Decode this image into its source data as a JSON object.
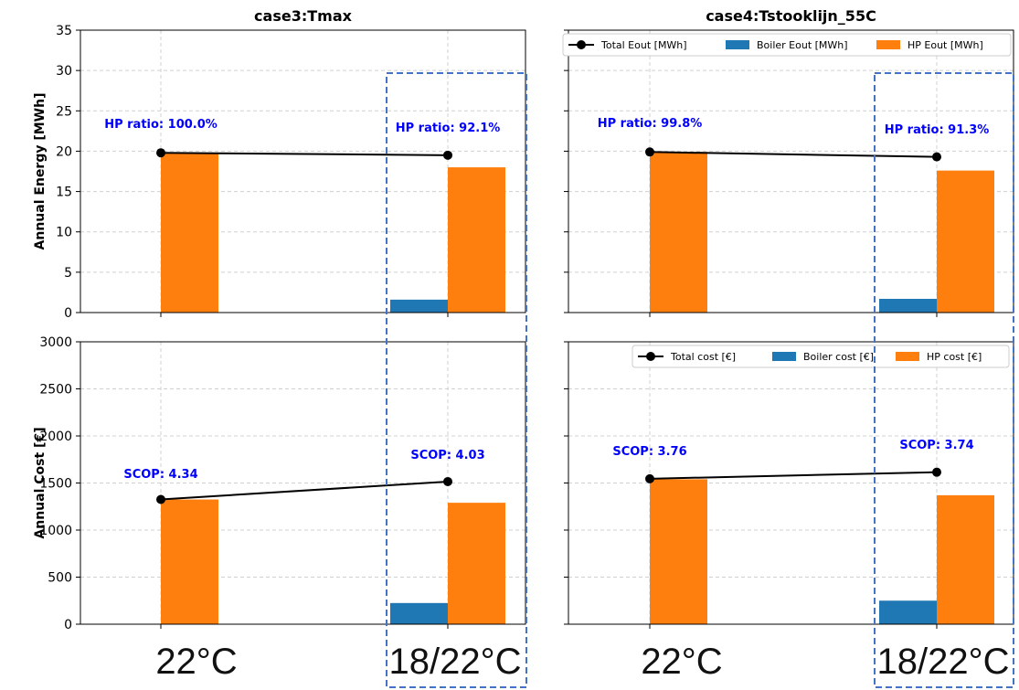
{
  "chart_data": [
    {
      "type": "bar",
      "panel": "top-left",
      "title": "case3:Tmax",
      "ylabel": "Annual Energy [MWh]",
      "ylim": [
        0,
        35
      ],
      "yticks": [
        0,
        5,
        10,
        15,
        20,
        25,
        30,
        35
      ],
      "categories": [
        "22°C",
        "18/22°C"
      ],
      "grid": true,
      "series": [
        {
          "name": "Boiler Eout [MWh]",
          "kind": "bar",
          "color": "#1f77b4",
          "values": [
            0,
            1.6
          ]
        },
        {
          "name": "HP Eout [MWh]",
          "kind": "bar",
          "color": "#ff7f0e",
          "values": [
            19.8,
            18.0
          ]
        },
        {
          "name": "Total Eout [MWh]",
          "kind": "line",
          "color": "#000000",
          "values": [
            19.8,
            19.5
          ]
        }
      ],
      "annotations": [
        "HP ratio: 100.0%",
        "HP ratio: 92.1%"
      ],
      "annotation_color": "#0000ff"
    },
    {
      "type": "bar",
      "panel": "top-right",
      "title": "case4:Tstooklijn_55C",
      "ylim": [
        0,
        35
      ],
      "categories": [
        "22°C",
        "18/22°C"
      ],
      "grid": true,
      "legend": {
        "placement": "top",
        "entries": [
          "Total Eout [MWh]",
          "Boiler Eout [MWh]",
          "HP Eout [MWh]"
        ]
      },
      "series": [
        {
          "name": "Boiler Eout [MWh]",
          "kind": "bar",
          "color": "#1f77b4",
          "values": [
            0,
            1.7
          ]
        },
        {
          "name": "HP Eout [MWh]",
          "kind": "bar",
          "color": "#ff7f0e",
          "values": [
            19.9,
            17.6
          ]
        },
        {
          "name": "Total Eout [MWh]",
          "kind": "line",
          "color": "#000000",
          "values": [
            19.9,
            19.3
          ]
        }
      ],
      "annotations": [
        "HP ratio: 99.8%",
        "HP ratio: 91.3%"
      ],
      "annotation_color": "#0000ff"
    },
    {
      "type": "bar",
      "panel": "bottom-left",
      "ylabel": "Annual Cost [€]",
      "ylim": [
        0,
        3000
      ],
      "yticks": [
        0,
        500,
        1000,
        1500,
        2000,
        2500,
        3000
      ],
      "categories": [
        "22°C",
        "18/22°C"
      ],
      "grid": true,
      "series": [
        {
          "name": "Boiler cost [€]",
          "kind": "bar",
          "color": "#1f77b4",
          "values": [
            0,
            225
          ]
        },
        {
          "name": "HP cost [€]",
          "kind": "bar",
          "color": "#ff7f0e",
          "values": [
            1325,
            1290
          ]
        },
        {
          "name": "Total cost [€]",
          "kind": "line",
          "color": "#000000",
          "values": [
            1325,
            1515
          ]
        }
      ],
      "annotations": [
        "SCOP: 4.34",
        "SCOP: 4.03"
      ],
      "annotation_color": "#0000ff"
    },
    {
      "type": "bar",
      "panel": "bottom-right",
      "ylim": [
        0,
        3000
      ],
      "categories": [
        "22°C",
        "18/22°C"
      ],
      "grid": true,
      "legend": {
        "placement": "top-right",
        "entries": [
          "Total cost [€]",
          "Boiler cost [€]",
          "HP cost [€]"
        ]
      },
      "series": [
        {
          "name": "Boiler cost [€]",
          "kind": "bar",
          "color": "#1f77b4",
          "values": [
            0,
            250
          ]
        },
        {
          "name": "HP cost [€]",
          "kind": "bar",
          "color": "#ff7f0e",
          "values": [
            1540,
            1370
          ]
        },
        {
          "name": "Total cost [€]",
          "kind": "line",
          "color": "#000000",
          "values": [
            1545,
            1615
          ]
        }
      ],
      "annotations": [
        "SCOP: 3.76",
        "SCOP: 3.74"
      ],
      "annotation_color": "#0000ff"
    }
  ],
  "x_category_labels": [
    "22°C",
    "18/22°C",
    "22°C",
    "18/22°C"
  ],
  "highlight_color": "#4472c4"
}
